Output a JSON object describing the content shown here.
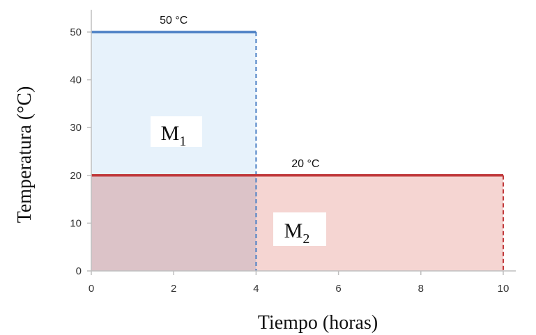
{
  "chart_data": {
    "type": "area",
    "xlabel": "Tiempo (horas)",
    "ylabel": "Temperatura (°C)",
    "xlim": [
      0,
      10
    ],
    "ylim": [
      0,
      50
    ],
    "x_ticks": [
      0,
      2,
      4,
      6,
      8,
      10
    ],
    "y_ticks": [
      0,
      10,
      20,
      30,
      40,
      50
    ],
    "grid": false,
    "series": [
      {
        "x": [
          0,
          4
        ],
        "y": [
          50,
          50
        ],
        "color": "#4a7fc4",
        "fill": "#e7f2fb",
        "label": "50 °C",
        "region_label": {
          "main": "M",
          "sub": "1"
        }
      },
      {
        "x": [
          0,
          10
        ],
        "y": [
          20,
          20
        ],
        "color": "#c0393b",
        "fill": "#f5d5d2",
        "label": "20 °C",
        "region_label": {
          "main": "M",
          "sub": "2"
        }
      }
    ],
    "overlap_fill": "#dcc3c8"
  }
}
